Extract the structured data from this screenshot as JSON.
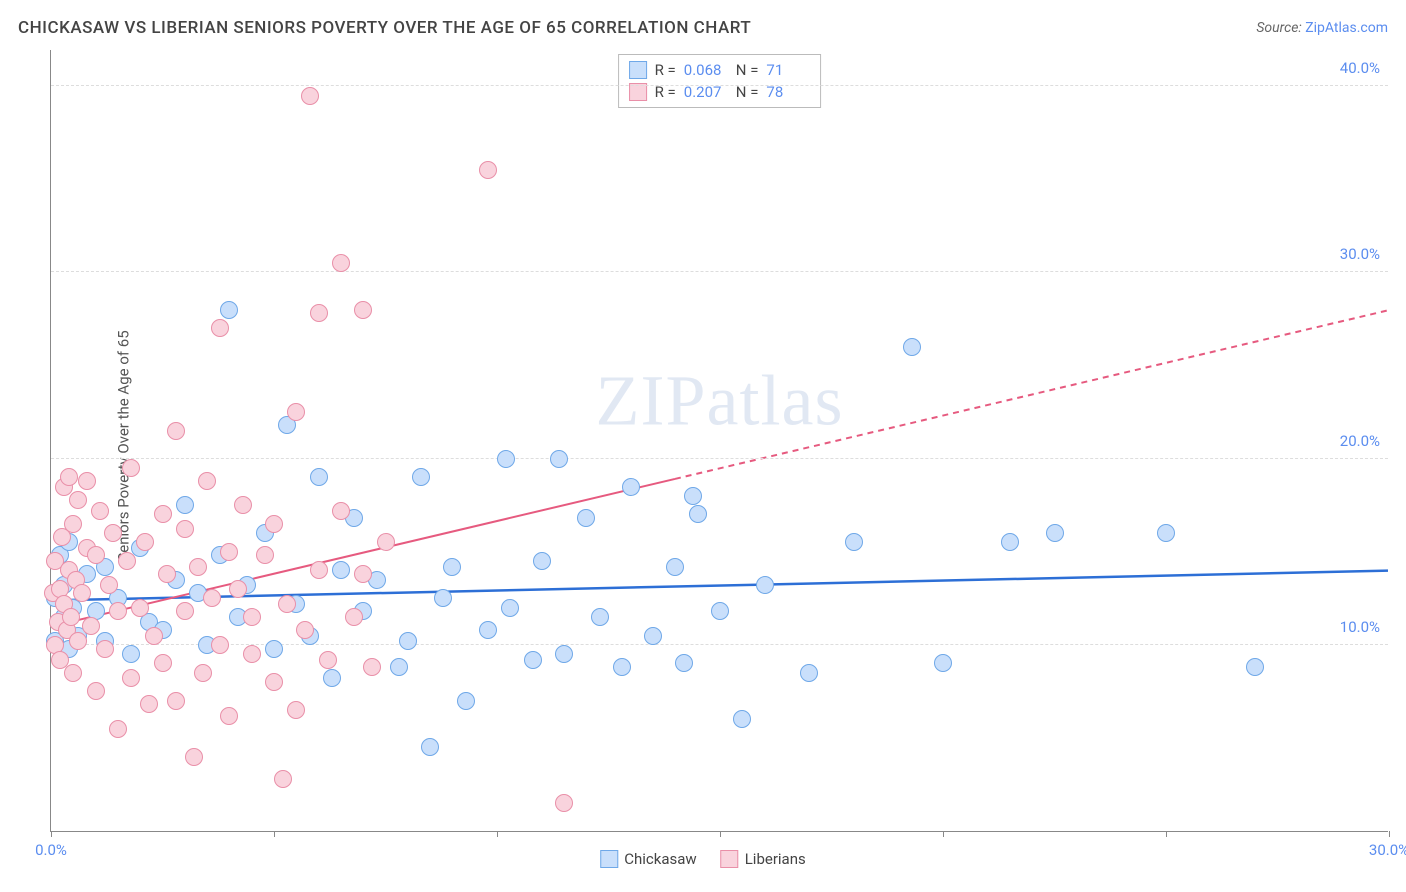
{
  "title": "CHICKASAW VS LIBERIAN SENIORS POVERTY OVER THE AGE OF 65 CORRELATION CHART",
  "source": {
    "label": "Source:",
    "link_text": "ZipAtlas.com"
  },
  "ylabel": "Seniors Poverty Over the Age of 65",
  "watermark": {
    "zip": "ZIP",
    "atlas": "atlas"
  },
  "chart": {
    "type": "scatter",
    "background_color": "#ffffff",
    "grid_color": "#dddddd",
    "axis_color": "#888888",
    "xlim": [
      0,
      30
    ],
    "ylim": [
      0,
      42
    ],
    "x_ticks": [
      0,
      5,
      10,
      15,
      20,
      25,
      30
    ],
    "x_tick_labels": {
      "0": "0.0%",
      "30": "30.0%"
    },
    "y_gridlines": [
      10,
      20,
      30,
      40
    ],
    "y_tick_labels": {
      "10": "10.0%",
      "20": "20.0%",
      "30": "30.0%",
      "40": "40.0%"
    },
    "tick_label_color": "#5b8def",
    "label_fontsize": 15,
    "point_radius": 9,
    "point_stroke_width": 1.5,
    "series": [
      {
        "name": "Chickasaw",
        "fill": "#c9dffb",
        "stroke": "#6fa8e8",
        "R": "0.068",
        "N": "71",
        "trend": {
          "y_at_x0": 12.4,
          "y_at_x30": 14.0,
          "solid_until_x": 30,
          "dashed": false,
          "color": "#2d6fd6",
          "width": 2.5
        },
        "points": [
          [
            0.1,
            12.5
          ],
          [
            0.1,
            10.2
          ],
          [
            0.2,
            14.8
          ],
          [
            0.3,
            11.5
          ],
          [
            0.3,
            13.2
          ],
          [
            0.4,
            9.8
          ],
          [
            0.4,
            15.5
          ],
          [
            0.5,
            12.0
          ],
          [
            0.6,
            10.5
          ],
          [
            0.8,
            13.8
          ],
          [
            1.0,
            11.8
          ],
          [
            1.2,
            10.2
          ],
          [
            1.2,
            14.2
          ],
          [
            1.5,
            12.5
          ],
          [
            1.8,
            9.5
          ],
          [
            2.0,
            15.2
          ],
          [
            2.2,
            11.2
          ],
          [
            2.5,
            10.8
          ],
          [
            2.8,
            13.5
          ],
          [
            3.0,
            17.5
          ],
          [
            3.3,
            12.8
          ],
          [
            3.5,
            10.0
          ],
          [
            3.8,
            14.8
          ],
          [
            4.0,
            28.0
          ],
          [
            4.2,
            11.5
          ],
          [
            4.4,
            13.2
          ],
          [
            4.8,
            16.0
          ],
          [
            5.0,
            9.8
          ],
          [
            5.3,
            21.8
          ],
          [
            5.5,
            12.2
          ],
          [
            5.8,
            10.5
          ],
          [
            6.0,
            19.0
          ],
          [
            6.3,
            8.2
          ],
          [
            6.5,
            14.0
          ],
          [
            6.8,
            16.8
          ],
          [
            7.0,
            11.8
          ],
          [
            7.3,
            13.5
          ],
          [
            7.8,
            8.8
          ],
          [
            8.0,
            10.2
          ],
          [
            8.3,
            19.0
          ],
          [
            8.5,
            4.5
          ],
          [
            8.8,
            12.5
          ],
          [
            9.0,
            14.2
          ],
          [
            9.3,
            7.0
          ],
          [
            9.8,
            10.8
          ],
          [
            10.2,
            20.0
          ],
          [
            10.3,
            12.0
          ],
          [
            10.8,
            9.2
          ],
          [
            11.0,
            14.5
          ],
          [
            11.4,
            20.0
          ],
          [
            11.5,
            9.5
          ],
          [
            12.0,
            16.8
          ],
          [
            12.3,
            11.5
          ],
          [
            12.8,
            8.8
          ],
          [
            13.0,
            18.5
          ],
          [
            13.5,
            10.5
          ],
          [
            14.0,
            14.2
          ],
          [
            14.2,
            9.0
          ],
          [
            14.4,
            18.0
          ],
          [
            14.5,
            17.0
          ],
          [
            15.0,
            11.8
          ],
          [
            15.5,
            6.0
          ],
          [
            16.0,
            13.2
          ],
          [
            17.0,
            8.5
          ],
          [
            18.0,
            15.5
          ],
          [
            19.3,
            26.0
          ],
          [
            20.0,
            9.0
          ],
          [
            21.5,
            15.5
          ],
          [
            22.5,
            16.0
          ],
          [
            25.0,
            16.0
          ],
          [
            27.0,
            8.8
          ]
        ]
      },
      {
        "name": "Liberians",
        "fill": "#f9d3dd",
        "stroke": "#e98fa8",
        "R": "0.207",
        "N": "78",
        "trend": {
          "y_at_x0": 11.0,
          "y_at_x30": 28.0,
          "solid_until_x": 14,
          "dashed": true,
          "color": "#e65a7f",
          "width": 2
        },
        "points": [
          [
            0.05,
            12.8
          ],
          [
            0.1,
            10.0
          ],
          [
            0.1,
            14.5
          ],
          [
            0.15,
            11.2
          ],
          [
            0.2,
            13.0
          ],
          [
            0.2,
            9.2
          ],
          [
            0.25,
            15.8
          ],
          [
            0.3,
            12.2
          ],
          [
            0.3,
            18.5
          ],
          [
            0.35,
            10.8
          ],
          [
            0.4,
            14.0
          ],
          [
            0.4,
            19.0
          ],
          [
            0.45,
            11.5
          ],
          [
            0.5,
            16.5
          ],
          [
            0.5,
            8.5
          ],
          [
            0.55,
            13.5
          ],
          [
            0.6,
            17.8
          ],
          [
            0.6,
            10.2
          ],
          [
            0.7,
            12.8
          ],
          [
            0.8,
            15.2
          ],
          [
            0.8,
            18.8
          ],
          [
            0.9,
            11.0
          ],
          [
            1.0,
            14.8
          ],
          [
            1.0,
            7.5
          ],
          [
            1.1,
            17.2
          ],
          [
            1.2,
            9.8
          ],
          [
            1.3,
            13.2
          ],
          [
            1.4,
            16.0
          ],
          [
            1.5,
            5.5
          ],
          [
            1.5,
            11.8
          ],
          [
            1.7,
            14.5
          ],
          [
            1.8,
            8.2
          ],
          [
            1.8,
            19.5
          ],
          [
            2.0,
            12.0
          ],
          [
            2.1,
            15.5
          ],
          [
            2.2,
            6.8
          ],
          [
            2.3,
            10.5
          ],
          [
            2.5,
            17.0
          ],
          [
            2.5,
            9.0
          ],
          [
            2.6,
            13.8
          ],
          [
            2.8,
            21.5
          ],
          [
            2.8,
            7.0
          ],
          [
            3.0,
            11.8
          ],
          [
            3.0,
            16.2
          ],
          [
            3.2,
            4.0
          ],
          [
            3.3,
            14.2
          ],
          [
            3.4,
            8.5
          ],
          [
            3.5,
            18.8
          ],
          [
            3.6,
            12.5
          ],
          [
            3.8,
            27.0
          ],
          [
            3.8,
            10.0
          ],
          [
            4.0,
            15.0
          ],
          [
            4.0,
            6.2
          ],
          [
            4.2,
            13.0
          ],
          [
            4.3,
            17.5
          ],
          [
            4.5,
            9.5
          ],
          [
            4.5,
            11.5
          ],
          [
            4.8,
            14.8
          ],
          [
            5.0,
            8.0
          ],
          [
            5.0,
            16.5
          ],
          [
            5.2,
            2.8
          ],
          [
            5.3,
            12.2
          ],
          [
            5.5,
            22.5
          ],
          [
            5.5,
            6.5
          ],
          [
            5.7,
            10.8
          ],
          [
            5.8,
            39.5
          ],
          [
            6.0,
            14.0
          ],
          [
            6.0,
            27.8
          ],
          [
            6.2,
            9.2
          ],
          [
            6.5,
            17.2
          ],
          [
            6.5,
            30.5
          ],
          [
            6.8,
            11.5
          ],
          [
            7.0,
            13.8
          ],
          [
            7.0,
            28.0
          ],
          [
            7.2,
            8.8
          ],
          [
            7.5,
            15.5
          ],
          [
            9.8,
            35.5
          ],
          [
            11.5,
            1.5
          ]
        ]
      }
    ]
  },
  "legend_stats": {
    "r_label": "R =",
    "n_label": "N ="
  },
  "bottom_legend": [
    {
      "label": "Chickasaw",
      "fill": "#c9dffb",
      "stroke": "#6fa8e8"
    },
    {
      "label": "Liberians",
      "fill": "#f9d3dd",
      "stroke": "#e98fa8"
    }
  ]
}
